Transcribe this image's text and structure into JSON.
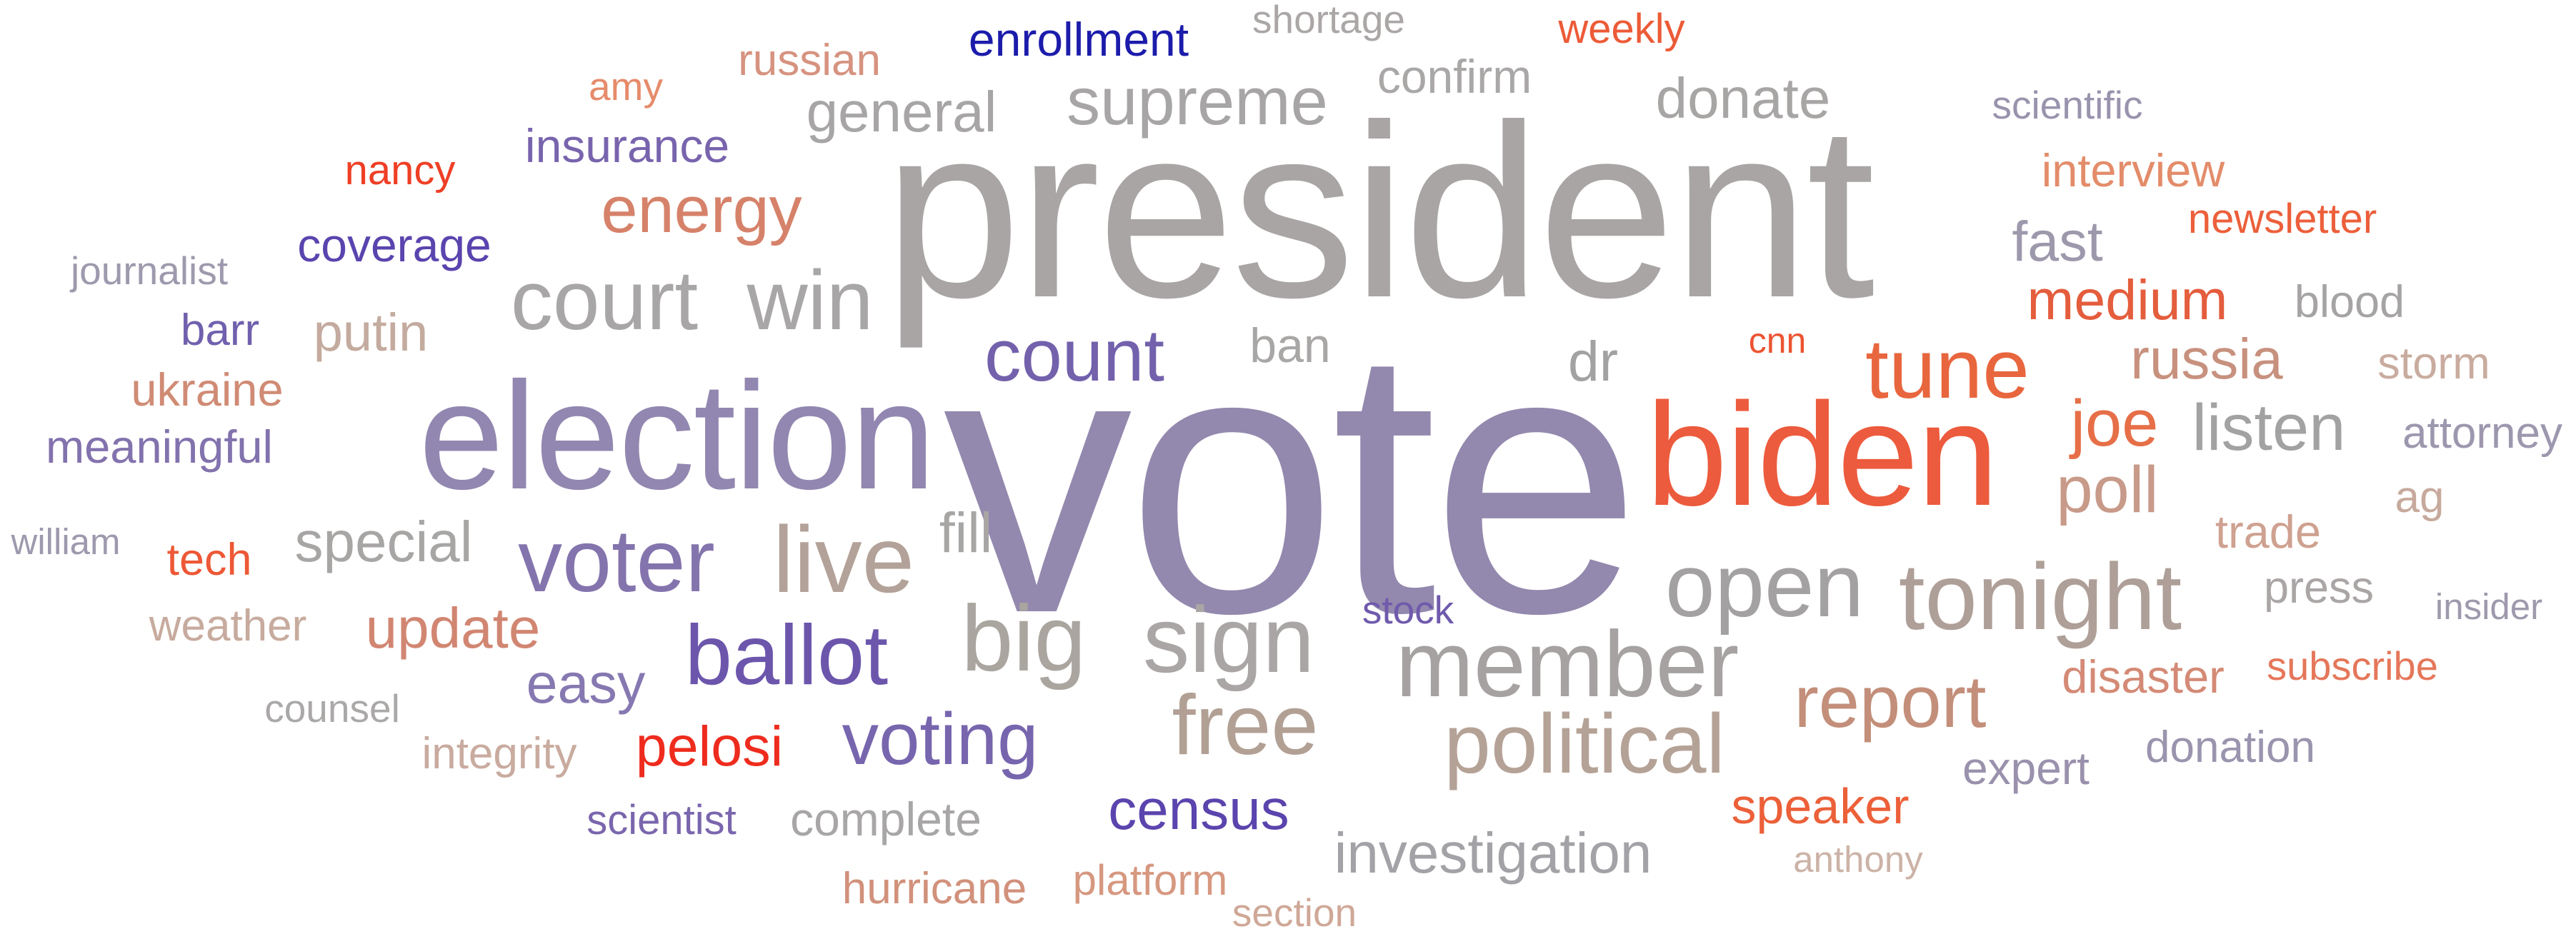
{
  "words": [
    {
      "text": "vote",
      "color": "#9388ad"
    },
    {
      "text": "president",
      "color": "#a8a5a4"
    },
    {
      "text": "election",
      "color": "#9287b0"
    },
    {
      "text": "biden",
      "color": "#ec5b3d"
    },
    {
      "text": "live",
      "color": "#b3a299"
    },
    {
      "text": "tonight",
      "color": "#ae9f98"
    },
    {
      "text": "member",
      "color": "#a5a2a1"
    },
    {
      "text": "big",
      "color": "#aaa59f"
    },
    {
      "text": "sign",
      "color": "#a9a6a5"
    },
    {
      "text": "open",
      "color": "#a3a1a1"
    },
    {
      "text": "voter",
      "color": "#8474ad"
    },
    {
      "text": "court",
      "color": "#a8a6a6"
    },
    {
      "text": "win",
      "color": "#a8a6a6"
    },
    {
      "text": "free",
      "color": "#b2a095"
    },
    {
      "text": "political",
      "color": "#b5a297"
    },
    {
      "text": "tune",
      "color": "#e8663e"
    },
    {
      "text": "ballot",
      "color": "#6c56ac"
    },
    {
      "text": "count",
      "color": "#7361ac"
    },
    {
      "text": "report",
      "color": "#c38f7a"
    },
    {
      "text": "voting",
      "color": "#7765ae"
    },
    {
      "text": "supreme",
      "color": "#a7a5a5"
    },
    {
      "text": "energy",
      "color": "#d6826a"
    },
    {
      "text": "listen",
      "color": "#a3a2a3"
    },
    {
      "text": "russia",
      "color": "#c7917e"
    },
    {
      "text": "joe",
      "color": "#e66f48"
    },
    {
      "text": "poll",
      "color": "#c89a89"
    },
    {
      "text": "special",
      "color": "#a8a6a5"
    },
    {
      "text": "general",
      "color": "#a7a5a5"
    },
    {
      "text": "census",
      "color": "#5b44ad"
    },
    {
      "text": "investigation",
      "color": "#a3a2a6"
    },
    {
      "text": "update",
      "color": "#d18672"
    },
    {
      "text": "donate",
      "color": "#a8a5a5"
    },
    {
      "text": "medium",
      "color": "#e45d3d"
    },
    {
      "text": "easy",
      "color": "#8678b0"
    },
    {
      "text": "pelosi",
      "color": "#ee2c1e"
    },
    {
      "text": "speaker",
      "color": "#ec6039"
    },
    {
      "text": "fast",
      "color": "#9e98ac"
    },
    {
      "text": "enrollment",
      "color": "#1c1cab"
    },
    {
      "text": "confirm",
      "color": "#aaa7a7"
    },
    {
      "text": "insurance",
      "color": "#7864ad"
    },
    {
      "text": "coverage",
      "color": "#5a44ae"
    },
    {
      "text": "meaningful",
      "color": "#8272ad"
    },
    {
      "text": "ukraine",
      "color": "#d08b75"
    },
    {
      "text": "putin",
      "color": "#c4ab9f"
    },
    {
      "text": "disaster",
      "color": "#d48a76"
    },
    {
      "text": "trade",
      "color": "#cfa190"
    },
    {
      "text": "interview",
      "color": "#e38c6a"
    },
    {
      "text": "newsletter",
      "color": "#ec5f3b"
    },
    {
      "text": "blood",
      "color": "#a6a3a5"
    },
    {
      "text": "storm",
      "color": "#c9ac9f"
    },
    {
      "text": "attorney",
      "color": "#9d97ae"
    },
    {
      "text": "complete",
      "color": "#a8a6a7"
    },
    {
      "text": "hurricane",
      "color": "#d1917b"
    },
    {
      "text": "platform",
      "color": "#d69880"
    },
    {
      "text": "russian",
      "color": "#d69380"
    },
    {
      "text": "fill",
      "color": "#a7a6a5"
    },
    {
      "text": "dr",
      "color": "#a3a2a2"
    },
    {
      "text": "ban",
      "color": "#a9a7a6"
    },
    {
      "text": "expert",
      "color": "#9a91ad"
    },
    {
      "text": "donation",
      "color": "#9b94ae"
    },
    {
      "text": "press",
      "color": "#aaa6a5"
    },
    {
      "text": "weather",
      "color": "#c7ab9e"
    },
    {
      "text": "integrity",
      "color": "#c9ab9f"
    },
    {
      "text": "counsel",
      "color": "#aba8a8"
    },
    {
      "text": "scientist",
      "color": "#7a66ad"
    },
    {
      "text": "stock",
      "color": "#6f5aac"
    },
    {
      "text": "anthony",
      "color": "#ccb3a7"
    },
    {
      "text": "subscribe",
      "color": "#e5775a"
    },
    {
      "text": "insider",
      "color": "#9f99ad"
    },
    {
      "text": "ag",
      "color": "#c7aa9d"
    },
    {
      "text": "section",
      "color": "#cfa898"
    },
    {
      "text": "tech",
      "color": "#ed5836"
    },
    {
      "text": "barr",
      "color": "#7060ad"
    },
    {
      "text": "journalist",
      "color": "#9e99ad"
    },
    {
      "text": "william",
      "color": "#9e99ad"
    },
    {
      "text": "nancy",
      "color": "#ee3f25"
    },
    {
      "text": "amy",
      "color": "#e68b6b"
    },
    {
      "text": "shortage",
      "color": "#aaa7a6"
    },
    {
      "text": "weekly",
      "color": "#ec5b37"
    },
    {
      "text": "scientific",
      "color": "#9a93ad"
    },
    {
      "text": "cnn",
      "color": "#ec5432"
    }
  ]
}
